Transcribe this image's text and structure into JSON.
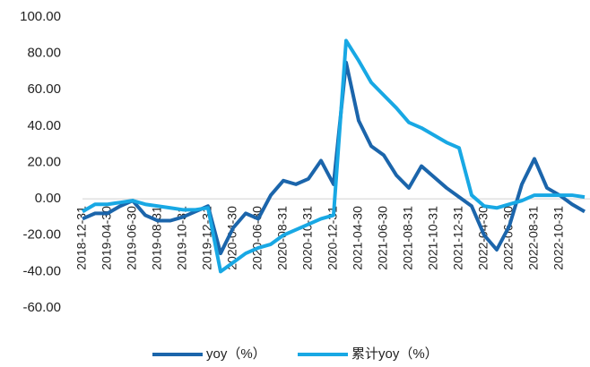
{
  "chart_data": {
    "type": "line",
    "categories": [
      "2018-12-31",
      null,
      "2019-04-30",
      null,
      "2019-06-30",
      null,
      "2019-08-31",
      null,
      "2019-10-31",
      null,
      "2019-12-31",
      null,
      "2020-04-30",
      null,
      "2020-06-30",
      null,
      "2020-08-31",
      null,
      "2020-10-31",
      null,
      "2020-12-31",
      null,
      "2021-04-30",
      null,
      "2021-06-30",
      null,
      "2021-08-31",
      null,
      "2021-10-31",
      null,
      "2021-12-31",
      null,
      "2022-04-30",
      null,
      "2022-06-30",
      null,
      "2022-08-31",
      null,
      "2022-10-31",
      null,
      null
    ],
    "series": [
      {
        "name": "yoy（%）",
        "color": "#1b65ab",
        "values": [
          -11,
          -8,
          -8,
          -4,
          -1,
          -9,
          -12,
          -12,
          -10,
          -7,
          -4,
          -30,
          -16,
          -8,
          -11,
          2,
          10,
          8,
          11,
          21,
          8,
          75,
          43,
          29,
          24,
          13,
          6,
          18,
          12,
          6,
          1,
          -4,
          -20,
          -28,
          -15,
          8,
          22,
          6,
          2,
          -3,
          -7
        ]
      },
      {
        "name": "累计yoy（%）",
        "color": "#18a8e4",
        "values": [
          -7,
          -3,
          -3,
          -2,
          -1,
          -3,
          -4,
          -5,
          -6,
          -6,
          -5,
          -40,
          -35,
          -30,
          -27,
          -25,
          -20,
          -17,
          -14,
          -11,
          -9,
          87,
          76,
          64,
          57,
          50,
          42,
          39,
          35,
          31,
          28,
          2,
          -4,
          -5,
          -3,
          -1,
          2,
          2,
          2,
          2,
          1
        ]
      }
    ],
    "ylim": [
      -60,
      100
    ],
    "yticks": [
      {
        "value": -60,
        "label": "-60.00"
      },
      {
        "value": -40,
        "label": "-40.00"
      },
      {
        "value": -20,
        "label": "-20.00"
      },
      {
        "value": 0,
        "label": "0.00"
      },
      {
        "value": 20,
        "label": "20.00"
      },
      {
        "value": 40,
        "label": "40.00"
      },
      {
        "value": 60,
        "label": "60.00"
      },
      {
        "value": 80,
        "label": "80.00"
      },
      {
        "value": 100,
        "label": "100.00"
      }
    ],
    "legend": "bottom"
  }
}
